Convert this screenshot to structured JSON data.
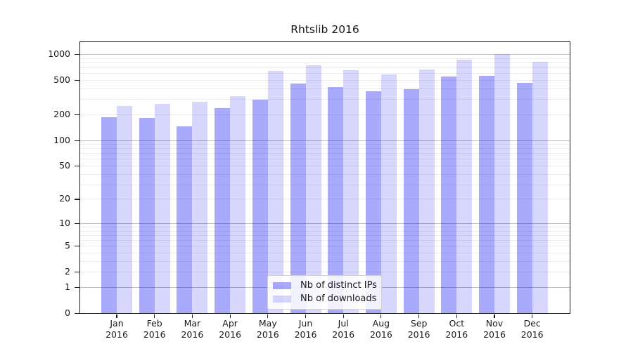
{
  "chart_data": {
    "type": "bar",
    "title": "Rhtslib 2016",
    "categories": [
      "Jan",
      "Feb",
      "Mar",
      "Apr",
      "May",
      "Jun",
      "Jul",
      "Aug",
      "Sep",
      "Oct",
      "Nov",
      "Dec"
    ],
    "year_label": "2016",
    "series": [
      {
        "name": "Nb of distinct IPs",
        "color": "rgba(0,0,245,0.335)",
        "values": [
          186,
          181,
          145,
          237,
          297,
          453,
          417,
          371,
          395,
          546,
          563,
          460
        ]
      },
      {
        "name": "Nb of downloads",
        "color": "rgba(0,0,245,0.155)",
        "values": [
          250,
          266,
          277,
          325,
          638,
          737,
          650,
          580,
          658,
          860,
          995,
          818
        ]
      }
    ],
    "xlabel": "",
    "ylabel": "",
    "yscale": "log10(1+x)",
    "ytick_labels": [
      "1000",
      "500",
      "200",
      "100",
      "50",
      "20",
      "10",
      "5",
      "2",
      "1",
      "0"
    ],
    "ytick_values": [
      1000,
      500,
      200,
      100,
      50,
      20,
      10,
      5,
      2,
      1,
      0
    ],
    "major_gridlines": [
      1,
      10,
      100,
      1000
    ],
    "minor_gridlines": [
      2,
      3,
      4,
      5,
      6,
      7,
      8,
      9,
      20,
      30,
      40,
      50,
      60,
      70,
      80,
      90,
      200,
      300,
      400,
      500,
      600,
      700,
      800,
      900
    ],
    "ylim": [
      0,
      1375
    ],
    "grid": true,
    "legend_position": "bottom-center",
    "colors": {
      "distinct_ips": "#aaaaf6",
      "downloads": "#d8d8f8",
      "major_grid": "#bdbdbd",
      "minor_grid": "#ececec",
      "axis": "#1a1a1a"
    }
  }
}
